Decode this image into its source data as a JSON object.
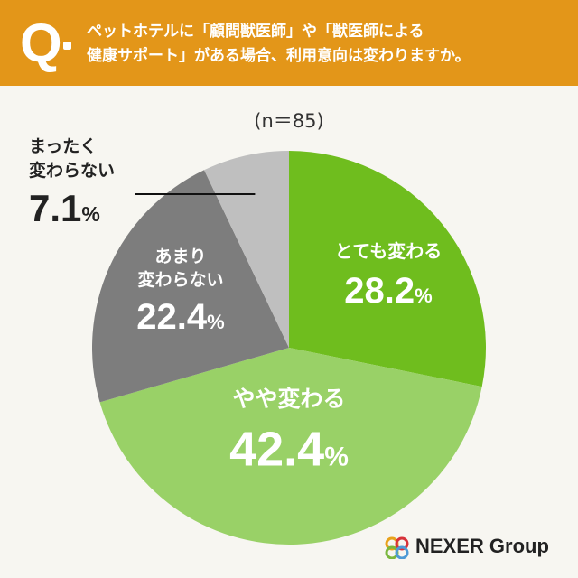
{
  "header": {
    "q_mark": "Q",
    "question": "ペットホテルに「顧問獣医師」や「獣医師による\n健康サポート」がある場合、利用意向は変わりますか。"
  },
  "sample": "(n＝85)",
  "chart_data": {
    "type": "pie",
    "title": "",
    "start": "12 o'clock",
    "direction": "clockwise",
    "slices": [
      {
        "label": [
          "とても変わる"
        ],
        "value": 28.2,
        "value_text": "28.2",
        "unit": "%",
        "color": "#6fbd1e",
        "text_color": "#ffffff"
      },
      {
        "label": [
          "やや変わる"
        ],
        "value": 42.4,
        "value_text": "42.4",
        "unit": "%",
        "color": "#99d167",
        "text_color": "#ffffff"
      },
      {
        "label": [
          "あまり",
          "変わらない"
        ],
        "value": 22.4,
        "value_text": "22.4",
        "unit": "%",
        "color": "#7d7d7d",
        "text_color": "#ffffff"
      },
      {
        "label": [
          "まったく",
          "変わらない"
        ],
        "value": 7.1,
        "value_text": "7.1",
        "unit": "%",
        "color": "#bfbfbf",
        "text_color": "#222222"
      }
    ]
  },
  "logo": {
    "text": "NEXER Group"
  }
}
